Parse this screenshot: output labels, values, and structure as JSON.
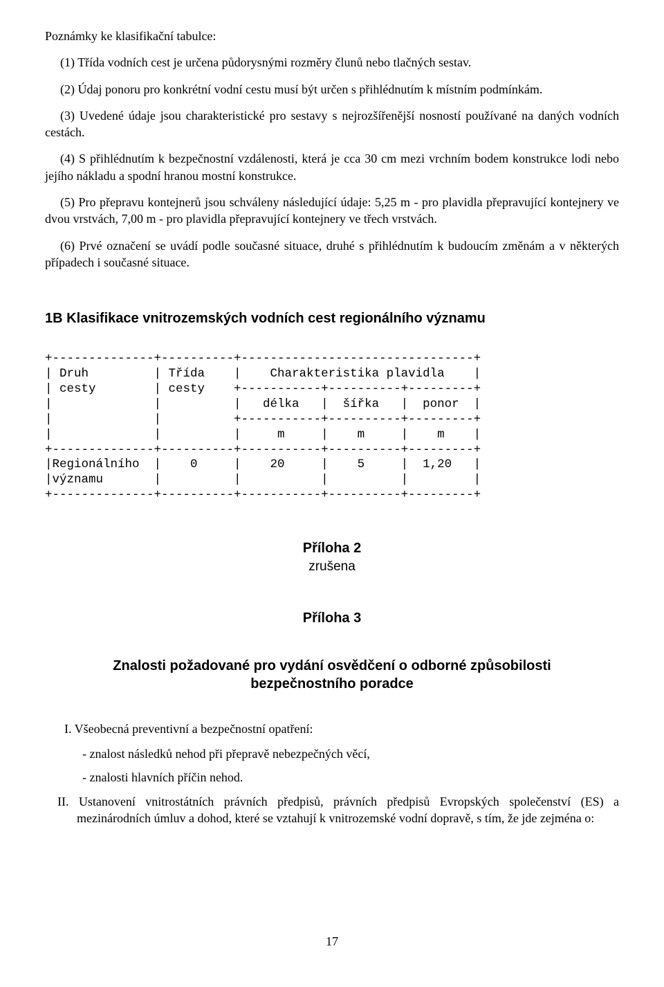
{
  "notes": {
    "heading": "Poznámky ke klasifikační tabulce:",
    "p1": "(1) Třída vodních cest je určena půdorysnými rozměry člunů nebo tlačných sestav.",
    "p2": "(2) Údaj ponoru pro konkrétní vodní cestu musí být určen s přihlédnutím k místním podmínkám.",
    "p3": "(3) Uvedené údaje jsou charakteristické pro sestavy s nejrozšířenější nosností používané na daných vodních cestách.",
    "p4": "(4) S přihlédnutím k bezpečnostní vzdálenosti, která je cca 30 cm mezi vrchním bodem konstrukce lodi nebo jejího nákladu a spodní hranou mostní konstrukce.",
    "p5": "(5) Pro přepravu kontejnerů jsou schváleny následující údaje: 5,25 m - pro plavidla přepravující kontejnery ve dvou vrstvách, 7,00 m - pro plavidla přepravující kontejnery ve třech vrstvách.",
    "p6": "(6) Prvé označení se uvádí podle současné situace, druhé s přihlédnutím k budoucím změnám a v některých případech i současné situace."
  },
  "section1b": {
    "heading": "1B Klasifikace vnitrozemských vodních cest regionálního významu",
    "table": {
      "type": "ascii-table",
      "font": "Courier New",
      "fontsize_pt": 13,
      "text_color": "#000000",
      "columns": [
        "Druh cesty",
        "Třída cesty",
        "délka",
        "šířka",
        "ponor"
      ],
      "col_widths_chars": [
        14,
        10,
        11,
        10,
        9
      ],
      "header_group": "Charakteristika plavidla",
      "units_row": [
        "",
        "",
        "m",
        "m",
        "m"
      ],
      "rows": [
        [
          "Regionálního významu",
          "0",
          "20",
          "5",
          "1,20"
        ]
      ],
      "lines": [
        "+--------------+----------+--------------------------------+",
        "| Druh         | Třída    |    Charakteristika plavidla    |",
        "| cesty        | cesty    +-----------+----------+---------+",
        "|              |          |   délka   |  šířka   |  ponor  |",
        "|              |          +-----------+----------+---------+",
        "|              |          |     m     |    m     |    m    |",
        "+--------------+----------+-----------+----------+---------+",
        "|Regionálního  |    0     |    20     |    5     |  1,20   |",
        "|významu       |          |           |          |         |",
        "+--------------+----------+-----------+----------+---------+"
      ]
    }
  },
  "appendix2": {
    "title": "Příloha 2",
    "status": "zrušena"
  },
  "appendix3": {
    "title": "Příloha 3",
    "heading_line1": "Znalosti požadované pro vydání osvědčení o odborné způsobilosti",
    "heading_line2": "bezpečnostního poradce",
    "item_I": "I.  Všeobecná preventivní a bezpečnostní opatření:",
    "dash1": "- znalost následků nehod při přepravě nebezpečných věcí,",
    "dash2": "- znalosti hlavních příčin nehod.",
    "item_II": "II. Ustanovení vnitrostátních právních předpisů, právních předpisů Evropských společenství (ES) a mezinárodních úmluv a dohod, které se vztahují k vnitrozemské vodní dopravě, s tím, že jde zejména o:"
  },
  "page_number": "17",
  "colors": {
    "text": "#000000",
    "background": "#ffffff"
  },
  "fonts": {
    "body": "Times New Roman",
    "headings": "Arial",
    "mono": "Courier New"
  }
}
